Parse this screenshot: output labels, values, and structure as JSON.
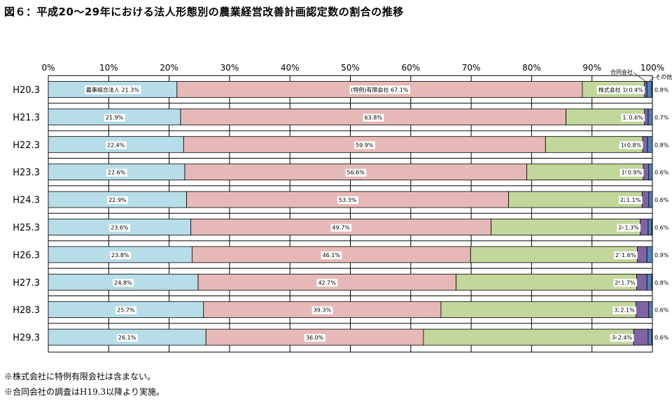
{
  "title": "図６：平成20～29年における法人形態別の農業経営改善計画認定数の割合の推移",
  "chart_data": {
    "type": "bar",
    "orientation": "horizontal",
    "stacked": true,
    "percent_stacked": true,
    "xlim": [
      0,
      100
    ],
    "x_ticks": [
      "0%",
      "10%",
      "20%",
      "30%",
      "40%",
      "50%",
      "60%",
      "70%",
      "80%",
      "90%",
      "100%"
    ],
    "grid": true,
    "categories": [
      "H20.3",
      "H21.3",
      "H22.3",
      "H23.3",
      "H24.3",
      "H25.3",
      "H26.3",
      "H27.3",
      "H28.3",
      "H29.3"
    ],
    "series": [
      {
        "name": "農事組合法人",
        "color": "#b6dde8",
        "values": [
          21.3,
          21.9,
          22.4,
          22.6,
          22.9,
          23.6,
          23.8,
          24.8,
          25.7,
          26.1
        ],
        "labels": [
          "21.3%",
          "21.9%",
          "22.4%",
          "22.6%",
          "22.9%",
          "23.6%",
          "23.8%",
          "24.8%",
          "25.7%",
          "26.1%"
        ]
      },
      {
        "name": "(特例)有限会社",
        "color": "#e6b9b8",
        "values": [
          67.1,
          63.8,
          59.9,
          56.6,
          53.3,
          49.7,
          46.1,
          42.7,
          39.3,
          36.0
        ],
        "labels": [
          "67.1%",
          "63.8%",
          "59.9%",
          "56.6%",
          "53.3%",
          "49.7%",
          "46.1%",
          "42.7%",
          "39.3%",
          "36.0%"
        ]
      },
      {
        "name": "株式会社",
        "color": "#c3d69b",
        "values": [
          10.3,
          13.0,
          16.1,
          19.3,
          22.1,
          24.7,
          27.6,
          29.9,
          32.3,
          34.8
        ],
        "labels": [
          "10.3%",
          "13.0%",
          "16.1%",
          "19.3%",
          "22.1%",
          "24.7%",
          "27.6%",
          "29.9%",
          "32.3%",
          "34.8%"
        ]
      },
      {
        "name": "合同会社",
        "color": "#8064a2",
        "values": [
          0.4,
          0.6,
          0.8,
          0.9,
          1.1,
          1.3,
          1.6,
          1.7,
          2.1,
          2.4
        ],
        "labels": [
          "0.4%",
          "0.6%",
          "0.8%",
          "0.9%",
          "1.1%",
          "1.3%",
          "1.6%",
          "1.7%",
          "2.1%",
          "2.4%"
        ]
      },
      {
        "name": "その他",
        "color": "#4f81bd",
        "values": [
          0.8,
          0.7,
          0.8,
          0.6,
          0.6,
          0.6,
          0.9,
          0.8,
          0.6,
          0.6
        ],
        "labels": [
          "0.8%",
          "0.7%",
          "0.8%",
          "0.6%",
          "0.6%",
          "0.6%",
          "0.9%",
          "0.8%",
          "0.6%",
          "0.6%"
        ]
      }
    ]
  },
  "notes": [
    "※株式会社に特例有限会社は含まない。",
    "※合同会社の調査はH19.3以降より実施。"
  ]
}
